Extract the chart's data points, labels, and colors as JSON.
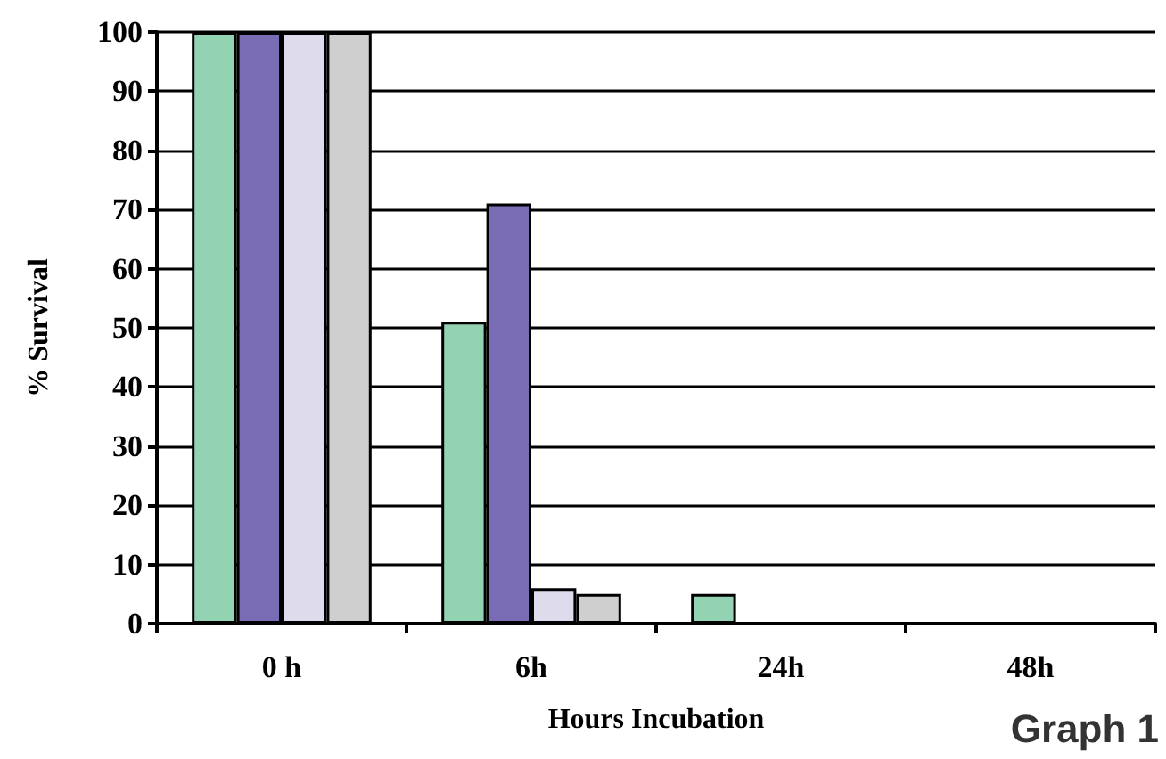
{
  "chart_data": {
    "type": "bar",
    "xlabel": "Hours Incubation",
    "ylabel": "% Survival",
    "categories": [
      "0 h",
      "6h",
      "24h",
      "48h"
    ],
    "series": [
      {
        "color": "#93d3b4",
        "values": [
          100,
          51,
          5,
          0
        ]
      },
      {
        "color": "#7a6cb4",
        "values": [
          100,
          71,
          0,
          0
        ]
      },
      {
        "color": "#dedcec",
        "values": [
          100,
          6,
          0,
          0
        ]
      },
      {
        "color": "#cfcfcf",
        "values": [
          100,
          5,
          0,
          0
        ]
      }
    ],
    "ylim": [
      0,
      100
    ],
    "yticks": [
      0,
      10,
      20,
      30,
      40,
      50,
      60,
      70,
      80,
      90,
      100
    ],
    "grid": "y",
    "annotations": [
      "Graph 1"
    ]
  }
}
